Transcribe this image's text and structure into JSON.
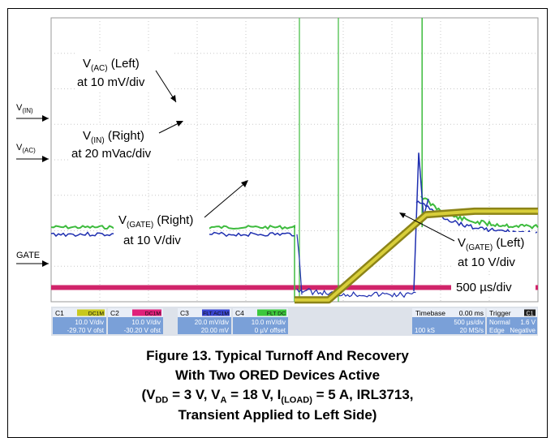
{
  "chart_data": {
    "type": "line",
    "title": "",
    "xlabel": "",
    "ylabel": "",
    "timebase": "500 µs/div",
    "grid": true,
    "x_divisions": 10,
    "y_divisions": 8,
    "markers": {
      "vin": {
        "main": "V",
        "sub": "(IN)"
      },
      "vac": {
        "main": "V",
        "sub": "(AC)"
      },
      "gate": "GATE"
    },
    "series": [
      {
        "name": "V(AC) (Left)",
        "color": "#3dbb3d",
        "scale": "at 10 mV/div",
        "x": [
          0,
          1,
          2,
          3,
          4,
          5,
          6,
          7,
          8,
          9,
          10
        ],
        "y": [
          2.1,
          2.1,
          2.1,
          2.1,
          2.1,
          2.1,
          2.1,
          2.1,
          2.4,
          2.1,
          2.1
        ]
      },
      {
        "name": "V(IN) (Right)",
        "color": "#1f2fb0",
        "scale": "at 20 mVac/div",
        "x": [
          0,
          1,
          2,
          3,
          4,
          5,
          6,
          7,
          8,
          9,
          10
        ],
        "y": [
          1.9,
          1.9,
          1.9,
          1.9,
          1.9,
          1.9,
          1.9,
          1.9,
          2.1,
          1.9,
          1.9
        ]
      },
      {
        "name": "V(GATE) (Right)",
        "color": "#d0246a",
        "scale": "at 10 V/div",
        "x": [
          0,
          2,
          4,
          6,
          8,
          10
        ],
        "y": [
          0.4,
          0.4,
          0.4,
          0.4,
          0.4,
          0.4
        ]
      },
      {
        "name": "V(GATE) (Left)",
        "color": "#a8a020",
        "scale": "at 10 V/div",
        "x": [
          0,
          2,
          4,
          6,
          8,
          10
        ],
        "y": [
          0.0,
          0.0,
          0.0,
          2.6,
          2.5,
          2.5
        ]
      }
    ]
  },
  "annotations": {
    "vac_left": {
      "l1_pre": "V",
      "l1_sub": "(AC)",
      "l1_post": " (Left)",
      "l2": "at 10 mV/div"
    },
    "vin_right": {
      "l1_pre": "V",
      "l1_sub": "(IN)",
      "l1_post": " (Right)",
      "l2": "at 20 mVac/div"
    },
    "vgate_right": {
      "l1_pre": "V",
      "l1_sub": "(GATE)",
      "l1_post": " (Right)",
      "l2": "at 10 V/div"
    },
    "vgate_left": {
      "l1_pre": "V",
      "l1_sub": "(GATE)",
      "l1_post": " (Left)",
      "l2": "at 10 V/div"
    },
    "timebase": "500 µs/div"
  },
  "scope_panel": {
    "channels": [
      {
        "id": "C1",
        "badge": "DC1M",
        "scale": "10.0 V/div",
        "offset": "-29.70 V ofst",
        "color": "#c8c81e"
      },
      {
        "id": "C2",
        "badge": "DC1M",
        "scale": "10.0 V/div",
        "offset": "-30.20 V ofst",
        "color": "#e0207a"
      },
      {
        "id": "C3",
        "badge": "FLT AC1M",
        "scale": "20.0 mV/div",
        "offset": "20.00 mV",
        "color": "#3a46d0"
      },
      {
        "id": "C4",
        "badge": "FLT DC",
        "scale": "10.0 mV/div",
        "offset": "0 µV offset",
        "color": "#3cc83c"
      }
    ],
    "timebase": {
      "label": "Timebase",
      "value": "0.00 ms",
      "per_div": "500 µs/div",
      "samples": "100 kS",
      "rate": "20 MS/s"
    },
    "trigger": {
      "label": "Trigger",
      "channel": "C1",
      "mode": "Normal",
      "level": "1.6 V",
      "type": "Edge",
      "slope": "Negative"
    }
  },
  "caption": {
    "line1": "Figure 13. Typical Turnoff And Recovery",
    "line2": "With Two ORED Devices Active",
    "line3": [
      {
        "t": "(V"
      },
      {
        "sub": "DD"
      },
      {
        "t": " = 3 V, V"
      },
      {
        "sub": "A"
      },
      {
        "t": " = 18 V, I"
      },
      {
        "sub": "(LOAD)"
      },
      {
        "t": " = 5 A, IRL3713,"
      }
    ],
    "line4": "Transient Applied to Left Side)"
  }
}
